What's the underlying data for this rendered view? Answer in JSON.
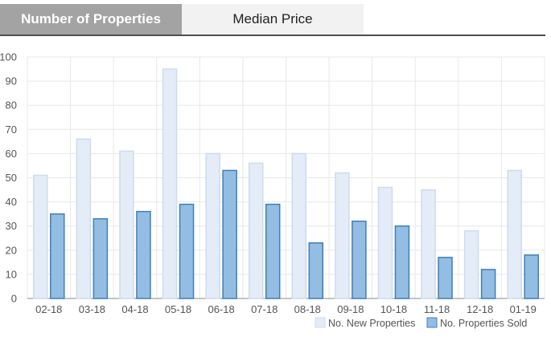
{
  "tabs": [
    {
      "label": "Number of Properties",
      "active": true
    },
    {
      "label": "Median Price",
      "active": false
    }
  ],
  "colors": {
    "new_fill": "#e4ecf7",
    "new_stroke": "#cddbef",
    "sold_fill": "#93bde3",
    "sold_stroke": "#3f7fb7",
    "grid": "#e8e8e8",
    "axis": "#888888"
  },
  "chart_data": {
    "type": "bar",
    "categories": [
      "02-18",
      "03-18",
      "04-18",
      "05-18",
      "06-18",
      "07-18",
      "08-18",
      "09-18",
      "10-18",
      "11-18",
      "12-18",
      "01-19"
    ],
    "series": [
      {
        "name": "No. New Properties",
        "values": [
          51,
          66,
          61,
          95,
          60,
          56,
          60,
          52,
          46,
          45,
          28,
          53
        ]
      },
      {
        "name": "No. Properties Sold",
        "values": [
          35,
          33,
          36,
          39,
          53,
          39,
          23,
          32,
          30,
          17,
          12,
          18
        ]
      }
    ],
    "yticks": [
      0,
      10,
      20,
      30,
      40,
      50,
      60,
      70,
      80,
      90,
      100
    ],
    "ylim": [
      0,
      100
    ],
    "grid": true,
    "legend_position": "bottom-right"
  }
}
